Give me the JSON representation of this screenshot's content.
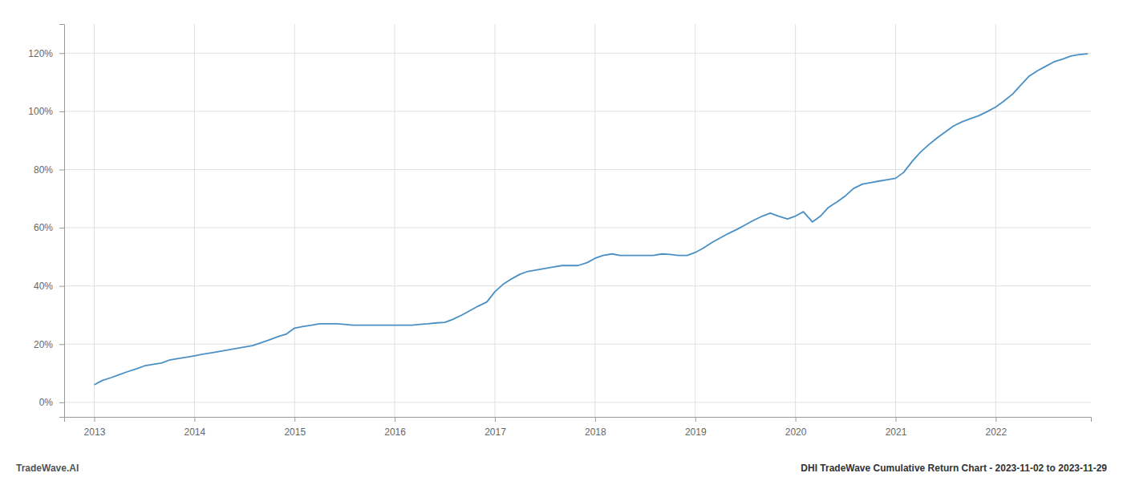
{
  "chart_data": {
    "type": "line",
    "title": "DHI TradeWave Cumulative Return Chart - 2023-11-02 to 2023-11-29",
    "annotations": [
      "TradeWave.AI"
    ],
    "color": "#4a90c4",
    "grid": true,
    "x": [
      2013.0,
      2013.08,
      2013.17,
      2013.25,
      2013.33,
      2013.42,
      2013.5,
      2013.58,
      2013.67,
      2013.75,
      2013.83,
      2013.92,
      2014.0,
      2014.08,
      2014.17,
      2014.25,
      2014.33,
      2014.42,
      2014.5,
      2014.58,
      2014.67,
      2014.75,
      2014.83,
      2014.92,
      2015.0,
      2015.08,
      2015.17,
      2015.25,
      2015.33,
      2015.42,
      2015.5,
      2015.58,
      2015.67,
      2015.75,
      2015.83,
      2015.92,
      2016.0,
      2016.08,
      2016.17,
      2016.25,
      2016.33,
      2016.42,
      2016.5,
      2016.58,
      2016.67,
      2016.75,
      2016.83,
      2016.92,
      2017.0,
      2017.08,
      2017.17,
      2017.25,
      2017.33,
      2017.42,
      2017.5,
      2017.58,
      2017.67,
      2017.75,
      2017.83,
      2017.92,
      2018.0,
      2018.08,
      2018.17,
      2018.25,
      2018.33,
      2018.42,
      2018.5,
      2018.58,
      2018.67,
      2018.75,
      2018.83,
      2018.92,
      2019.0,
      2019.08,
      2019.17,
      2019.25,
      2019.33,
      2019.42,
      2019.5,
      2019.58,
      2019.67,
      2019.75,
      2019.83,
      2019.92,
      2020.0,
      2020.08,
      2020.17,
      2020.25,
      2020.33,
      2020.42,
      2020.5,
      2020.58,
      2020.67,
      2020.75,
      2020.83,
      2020.92,
      2021.0,
      2021.08,
      2021.17,
      2021.25,
      2021.33,
      2021.42,
      2021.5,
      2021.58,
      2021.67,
      2021.75,
      2021.83,
      2021.92,
      2022.0,
      2022.08,
      2022.17,
      2022.25,
      2022.33,
      2022.42,
      2022.5,
      2022.58,
      2022.67,
      2022.75,
      2022.83,
      2022.92
    ],
    "values": [
      6.0,
      7.5,
      8.5,
      9.5,
      10.5,
      11.5,
      12.5,
      13.0,
      13.5,
      14.5,
      15.0,
      15.5,
      16.0,
      16.5,
      17.0,
      17.5,
      18.0,
      18.5,
      19.0,
      19.5,
      20.5,
      21.5,
      22.5,
      23.5,
      25.5,
      26.0,
      26.5,
      27.0,
      27.0,
      27.0,
      26.8,
      26.5,
      26.5,
      26.5,
      26.5,
      26.5,
      26.5,
      26.5,
      26.5,
      26.8,
      27.0,
      27.3,
      27.5,
      28.5,
      30.0,
      31.5,
      33.0,
      34.5,
      38.0,
      40.5,
      42.5,
      44.0,
      45.0,
      45.5,
      46.0,
      46.5,
      47.0,
      47.0,
      47.0,
      48.0,
      49.5,
      50.5,
      51.0,
      50.5,
      50.5,
      50.5,
      50.5,
      50.5,
      51.0,
      50.8,
      50.5,
      50.5,
      51.5,
      53.0,
      55.0,
      56.5,
      58.0,
      59.5,
      61.0,
      62.5,
      64.0,
      65.0,
      64.0,
      63.0,
      64.0,
      65.5,
      62.0,
      64.0,
      67.0,
      69.0,
      71.0,
      73.5,
      75.0,
      75.5,
      76.0,
      76.5,
      77.0,
      79.0,
      83.0,
      86.0,
      88.5,
      91.0,
      93.0,
      95.0,
      96.5,
      97.5,
      98.5,
      100.0,
      101.5,
      103.5,
      106.0,
      109.0,
      112.0,
      114.0,
      115.5,
      117.0,
      118.0,
      119.0,
      119.5,
      119.8
    ],
    "xlim": [
      2012.7,
      2022.95
    ],
    "xticks": [
      2013,
      2014,
      2015,
      2016,
      2017,
      2018,
      2019,
      2020,
      2021,
      2022
    ],
    "ylim": [
      -5,
      130
    ],
    "yticks": [
      {
        "value": 0,
        "label": "0%"
      },
      {
        "value": 20,
        "label": "20%"
      },
      {
        "value": 40,
        "label": "40%"
      },
      {
        "value": 60,
        "label": "60%"
      },
      {
        "value": 80,
        "label": "80%"
      },
      {
        "value": 100,
        "label": "100%"
      },
      {
        "value": 120,
        "label": "120%"
      }
    ]
  }
}
